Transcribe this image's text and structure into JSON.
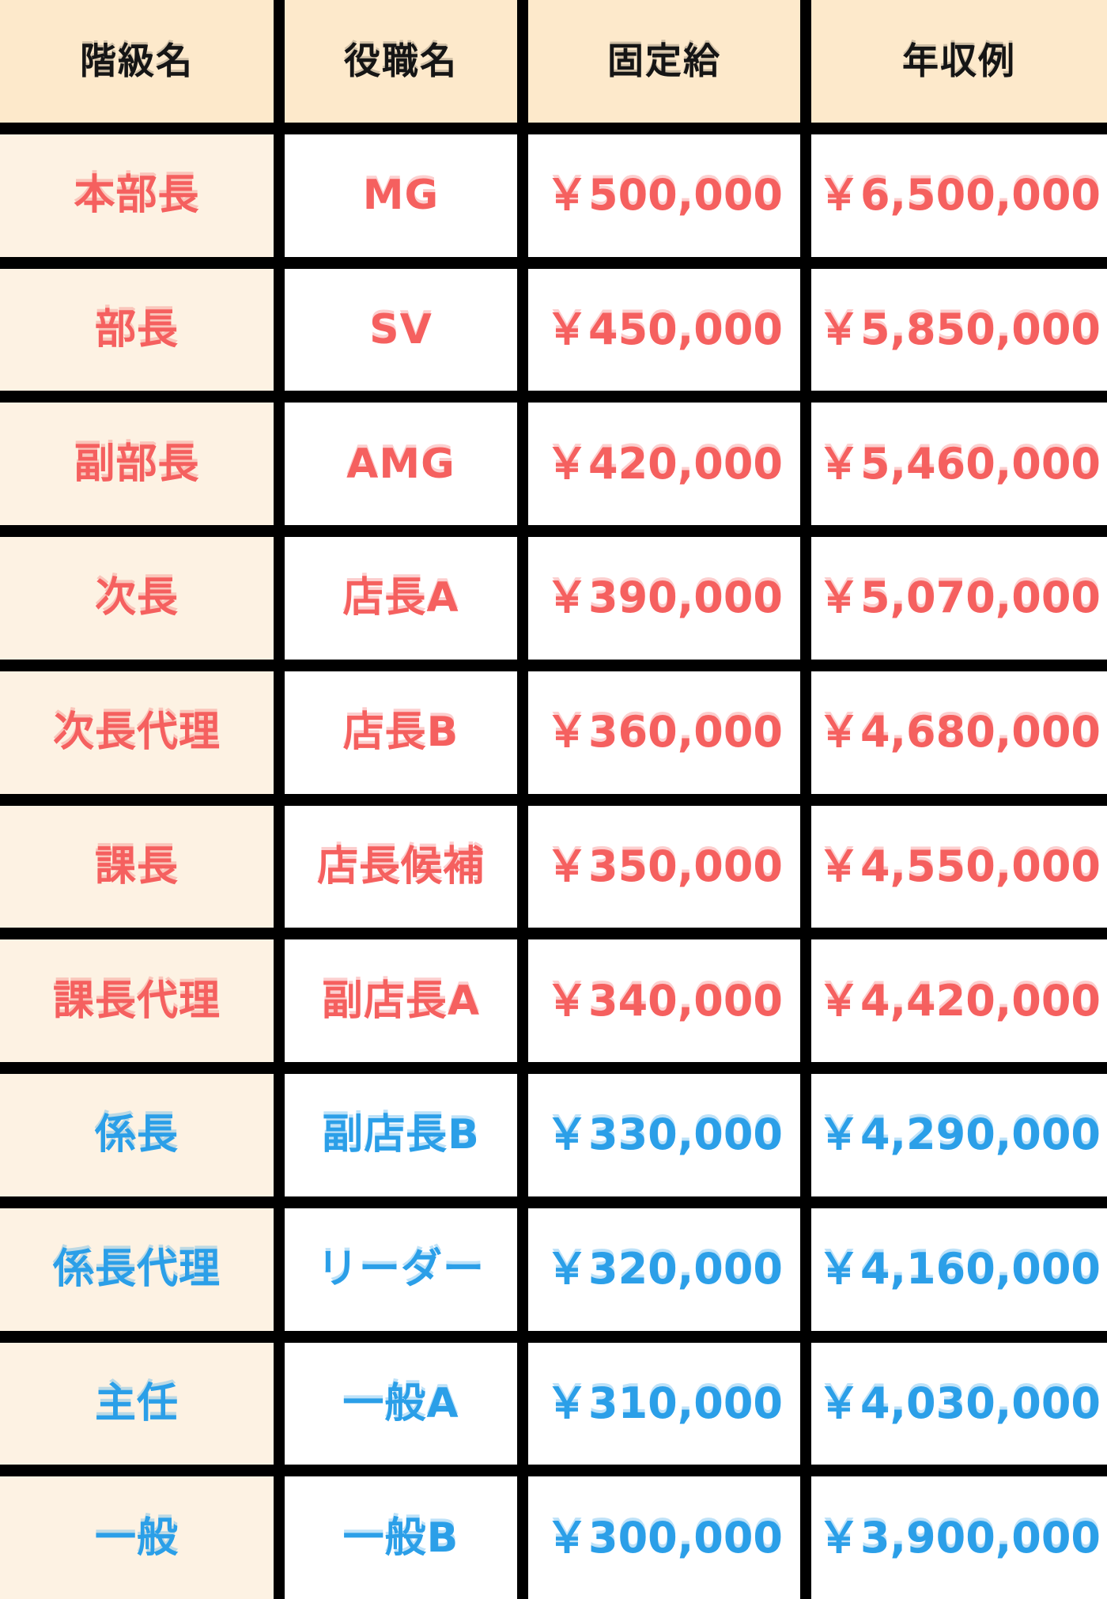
{
  "chart_data": {
    "type": "table",
    "title": "",
    "columns": [
      "階級名",
      "役職名",
      "固定給",
      "年収例"
    ],
    "rows": [
      {
        "rank": "本部長",
        "position": "MG",
        "fixed_salary": "￥500,000",
        "annual_income": "￥6,500,000",
        "color": "red"
      },
      {
        "rank": "部長",
        "position": "SV",
        "fixed_salary": "￥450,000",
        "annual_income": "￥5,850,000",
        "color": "red"
      },
      {
        "rank": "副部長",
        "position": "AMG",
        "fixed_salary": "￥420,000",
        "annual_income": "￥5,460,000",
        "color": "red"
      },
      {
        "rank": "次長",
        "position": "店長A",
        "fixed_salary": "￥390,000",
        "annual_income": "￥5,070,000",
        "color": "red"
      },
      {
        "rank": "次長代理",
        "position": "店長B",
        "fixed_salary": "￥360,000",
        "annual_income": "￥4,680,000",
        "color": "red"
      },
      {
        "rank": "課長",
        "position": "店長候補",
        "fixed_salary": "￥350,000",
        "annual_income": "￥4,550,000",
        "color": "red"
      },
      {
        "rank": "課長代理",
        "position": "副店長A",
        "fixed_salary": "￥340,000",
        "annual_income": "￥4,420,000",
        "color": "red"
      },
      {
        "rank": "係長",
        "position": "副店長B",
        "fixed_salary": "￥330,000",
        "annual_income": "￥4,290,000",
        "color": "blue"
      },
      {
        "rank": "係長代理",
        "position": "リーダー",
        "fixed_salary": "￥320,000",
        "annual_income": "￥4,160,000",
        "color": "blue"
      },
      {
        "rank": "主任",
        "position": "一般A",
        "fixed_salary": "￥310,000",
        "annual_income": "￥4,030,000",
        "color": "blue"
      },
      {
        "rank": "一般",
        "position": "一般B",
        "fixed_salary": "￥300,000",
        "annual_income": "￥3,900,000",
        "color": "blue"
      }
    ]
  },
  "colors": {
    "red": "#F5605F",
    "blue": "#2B9FE8",
    "header_bg": "#FDE9CB",
    "rank_bg": "#FDF2E3",
    "cell_bg": "#FFFFFF",
    "border": "#000000"
  }
}
